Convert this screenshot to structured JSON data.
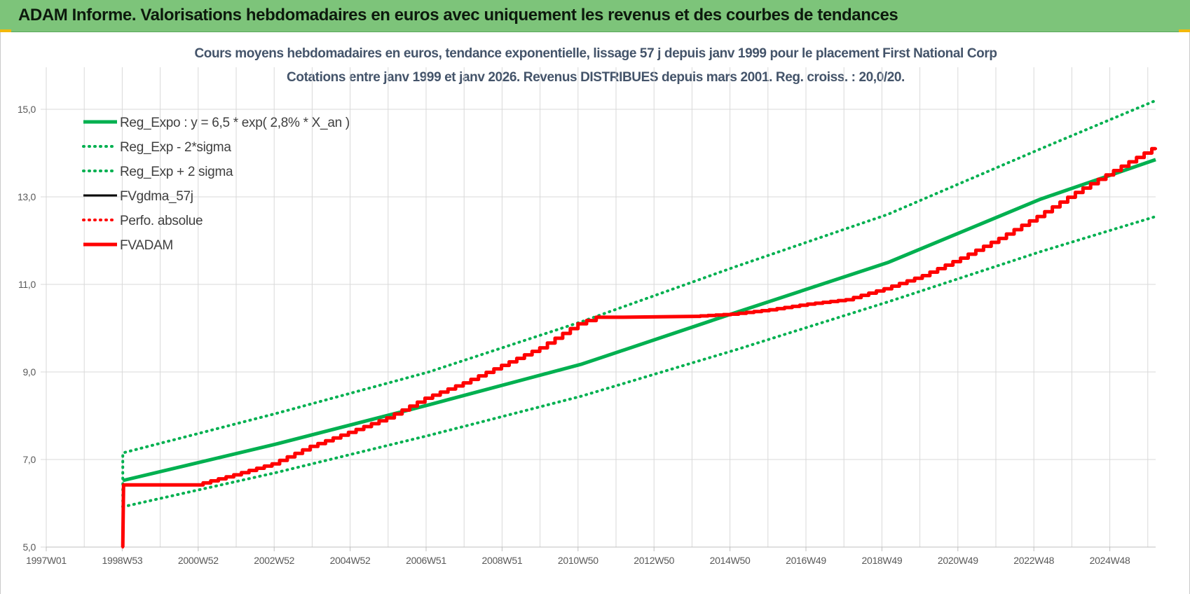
{
  "header": {
    "title": "ADAM Informe. Valorisations hebdomadaires en euros avec uniquement les revenus et des courbes de tendances"
  },
  "colors": {
    "header_bg": "#7dc47a",
    "green": "#00b050",
    "red": "#ff0000",
    "black": "#000000",
    "grid": "#d9d9d9"
  },
  "chart_data": {
    "type": "line",
    "title": "Cours moyens  hebdomadaires en euros, tendance exponentielle, lissage 57 j depuis janv 1999 pour le placement First National Corp",
    "subtitle": "Cotations entre janv 1999 et janv 2026. Revenus DISTRIBUES depuis mars 2001. Reg. croiss. : 20,0/20.",
    "xlabel": "",
    "ylabel": "",
    "x_ticks": [
      "1997W01",
      "1998W53",
      "2000W52",
      "2002W52",
      "2004W52",
      "2006W51",
      "2008W51",
      "2010W50",
      "2012W50",
      "2014W50",
      "2016W49",
      "2018W49",
      "2020W49",
      "2022W48",
      "2024W48"
    ],
    "xlim": [
      1997.0,
      2026.0
    ],
    "ylim": [
      5.0,
      16.0
    ],
    "y_ticks": [
      5.0,
      7.0,
      9.0,
      11.0,
      13.0,
      15.0
    ],
    "y_tick_labels": [
      "5,0",
      "7,0",
      "9,0",
      "11,0",
      "13,0",
      "15,0"
    ],
    "grid": true,
    "legend_position": "top-left",
    "series": [
      {
        "name": "Reg_Expo : y = 6,5 * exp( 2,8% *  X_an )",
        "style": "solid-thick",
        "color": "#00b050",
        "x": [
          1999.0,
          2003.0,
          2007.0,
          2011.0,
          2015.0,
          2019.0,
          2023.0,
          2026.0
        ],
        "y": [
          6.52,
          7.35,
          8.25,
          9.18,
          10.35,
          11.5,
          12.95,
          13.85
        ]
      },
      {
        "name": "Reg_Exp - 2*sigma",
        "style": "dotted",
        "color": "#00b050",
        "x": [
          1999.0,
          2003.0,
          2007.0,
          2011.0,
          2015.0,
          2019.0,
          2023.0,
          2026.0
        ],
        "y": [
          5.92,
          6.7,
          7.55,
          8.45,
          9.5,
          10.6,
          11.75,
          12.55
        ]
      },
      {
        "name": "Reg_Exp + 2 sigma",
        "style": "dotted",
        "color": "#00b050",
        "x": [
          1999.0,
          2003.0,
          2007.0,
          2011.0,
          2015.0,
          2019.0,
          2023.0,
          2026.0
        ],
        "y": [
          7.15,
          8.05,
          9.0,
          10.15,
          11.4,
          12.6,
          14.1,
          15.2
        ]
      },
      {
        "name": "FVgdma_57j",
        "style": "solid",
        "color": "#000000",
        "x": [
          1999.0,
          1999.02,
          2001.0,
          2002.0,
          2003.0,
          2004.0,
          2005.0,
          2006.0,
          2007.0,
          2008.0,
          2009.0,
          2010.0,
          2011.0,
          2011.5,
          2012.0,
          2014.0,
          2015.0,
          2016.0,
          2017.0,
          2018.0,
          2019.0,
          2020.0,
          2021.0,
          2022.0,
          2023.0,
          2024.0,
          2025.0,
          2026.0
        ],
        "y": [
          5.0,
          6.42,
          6.42,
          6.65,
          6.9,
          7.3,
          7.62,
          7.95,
          8.4,
          8.75,
          9.15,
          9.55,
          10.1,
          10.25,
          10.25,
          10.27,
          10.32,
          10.42,
          10.55,
          10.65,
          10.9,
          11.2,
          11.6,
          12.05,
          12.55,
          13.1,
          13.6,
          14.1
        ]
      },
      {
        "name": "Perfo. absolue",
        "style": "dotted",
        "color": "#ff0000",
        "x": [
          1999.0,
          1999.02,
          2001.0,
          2002.0,
          2003.0,
          2004.0,
          2005.0,
          2006.0,
          2007.0,
          2008.0,
          2009.0,
          2010.0,
          2011.0,
          2011.5,
          2012.0,
          2014.0,
          2015.0,
          2016.0,
          2017.0,
          2018.0,
          2019.0,
          2020.0,
          2021.0,
          2022.0,
          2023.0,
          2024.0,
          2025.0,
          2026.0
        ],
        "y": [
          5.0,
          6.42,
          6.42,
          6.65,
          6.9,
          7.3,
          7.62,
          7.95,
          8.4,
          8.75,
          9.15,
          9.55,
          10.1,
          10.25,
          10.25,
          10.27,
          10.32,
          10.42,
          10.55,
          10.65,
          10.9,
          11.2,
          11.6,
          12.05,
          12.55,
          13.1,
          13.6,
          14.1
        ]
      },
      {
        "name": "FVADAM",
        "style": "solid-thick",
        "color": "#ff0000",
        "x": [
          1999.0,
          1999.02,
          2001.0,
          2002.0,
          2003.0,
          2004.0,
          2005.0,
          2006.0,
          2007.0,
          2008.0,
          2009.0,
          2010.0,
          2011.0,
          2011.5,
          2012.0,
          2014.0,
          2015.0,
          2016.0,
          2017.0,
          2018.0,
          2019.0,
          2020.0,
          2021.0,
          2022.0,
          2023.0,
          2024.0,
          2025.0,
          2026.0
        ],
        "y": [
          5.0,
          6.42,
          6.42,
          6.65,
          6.9,
          7.3,
          7.62,
          7.95,
          8.4,
          8.75,
          9.15,
          9.55,
          10.1,
          10.25,
          10.25,
          10.27,
          10.32,
          10.42,
          10.55,
          10.65,
          10.9,
          11.2,
          11.6,
          12.05,
          12.55,
          13.1,
          13.6,
          14.1
        ]
      }
    ]
  }
}
